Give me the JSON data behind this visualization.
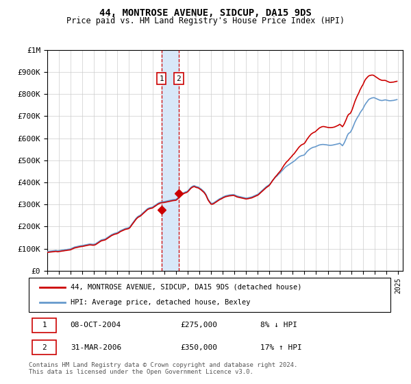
{
  "title": "44, MONTROSE AVENUE, SIDCUP, DA15 9DS",
  "subtitle": "Price paid vs. HM Land Registry's House Price Index (HPI)",
  "legend_line1": "44, MONTROSE AVENUE, SIDCUP, DA15 9DS (detached house)",
  "legend_line2": "HPI: Average price, detached house, Bexley",
  "transaction1_date": "2004-10-08",
  "transaction1_price": 275000,
  "transaction2_date": "2006-03-31",
  "transaction2_price": 350000,
  "footer": "Contains HM Land Registry data © Crown copyright and database right 2024.\nThis data is licensed under the Open Government Licence v3.0.",
  "red_color": "#cc0000",
  "blue_color": "#6699cc",
  "shaded_color": "#d8e8f8",
  "ylim": [
    0,
    1000000
  ],
  "yticks": [
    0,
    100000,
    200000,
    300000,
    400000,
    500000,
    600000,
    700000,
    800000,
    900000,
    1000000
  ],
  "ytick_labels": [
    "£0",
    "£100K",
    "£200K",
    "£300K",
    "£400K",
    "£500K",
    "£600K",
    "£700K",
    "£800K",
    "£900K",
    "£1M"
  ],
  "hpi_monthly_values": [
    87000,
    87500,
    88000,
    88500,
    89000,
    89500,
    90000,
    90500,
    91000,
    91500,
    90500,
    90000,
    91000,
    91500,
    92000,
    93000,
    93500,
    94000,
    95000,
    95500,
    96000,
    97000,
    97500,
    98000,
    99000,
    101000,
    103000,
    105000,
    107000,
    108000,
    109000,
    110000,
    111000,
    112000,
    113000,
    113500,
    114000,
    115000,
    116000,
    117000,
    118000,
    119000,
    120000,
    120500,
    121000,
    120500,
    120000,
    119500,
    120000,
    121000,
    123000,
    126000,
    129000,
    132000,
    135000,
    138000,
    140000,
    141000,
    142000,
    143000,
    145000,
    148000,
    151000,
    154000,
    157000,
    160000,
    163000,
    165000,
    167000,
    169000,
    170000,
    171000,
    173000,
    175000,
    178000,
    181000,
    183000,
    185000,
    187000,
    189000,
    191000,
    192000,
    193000,
    194000,
    196000,
    200000,
    206000,
    212000,
    218000,
    224000,
    230000,
    236000,
    241000,
    245000,
    248000,
    250000,
    253000,
    257000,
    261000,
    265000,
    269000,
    273000,
    277000,
    281000,
    283000,
    285000,
    286000,
    287000,
    288000,
    291000,
    294000,
    297000,
    300000,
    303000,
    306000,
    308000,
    310000,
    311000,
    312000,
    312500,
    313000,
    314000,
    315000,
    316000,
    317000,
    318000,
    319000,
    320000,
    321000,
    321500,
    322000,
    322500,
    323000,
    326000,
    330000,
    334000,
    338000,
    342000,
    346000,
    350000,
    353000,
    355000,
    357000,
    358000,
    361000,
    365000,
    370000,
    375000,
    379000,
    382000,
    384000,
    385000,
    383000,
    381000,
    380000,
    379000,
    376000,
    373000,
    370000,
    366000,
    362000,
    358000,
    352000,
    345000,
    335000,
    325000,
    318000,
    312000,
    306000,
    305000,
    306000,
    308000,
    311000,
    314000,
    317000,
    320000,
    323000,
    326000,
    328000,
    330000,
    333000,
    335000,
    337000,
    339000,
    340000,
    341000,
    342000,
    343000,
    343500,
    344000,
    344500,
    345000,
    344000,
    342000,
    340000,
    338000,
    337000,
    336000,
    335000,
    334000,
    333000,
    332000,
    331000,
    330000,
    329000,
    329500,
    330000,
    331000,
    332000,
    333000,
    334000,
    336000,
    338000,
    340000,
    342000,
    344000,
    346000,
    349000,
    353000,
    357000,
    361000,
    365000,
    369000,
    373000,
    377000,
    381000,
    384000,
    387000,
    390000,
    395000,
    401000,
    407000,
    412000,
    417000,
    422000,
    426000,
    430000,
    435000,
    439000,
    443000,
    448000,
    453000,
    458000,
    463000,
    467000,
    471000,
    474000,
    477000,
    480000,
    483000,
    486000,
    489000,
    492000,
    495000,
    498000,
    502000,
    506000,
    510000,
    514000,
    517000,
    519000,
    521000,
    522000,
    523000,
    525000,
    530000,
    536000,
    541000,
    545000,
    549000,
    552000,
    555000,
    557000,
    559000,
    560000,
    561000,
    563000,
    565000,
    567000,
    569000,
    570000,
    571000,
    571500,
    572000,
    571500,
    571000,
    570500,
    570000,
    569000,
    568500,
    568000,
    568000,
    568500,
    569000,
    570000,
    571000,
    572000,
    573000,
    574000,
    575000,
    577000,
    575000,
    571000,
    566000,
    572000,
    580000,
    590000,
    600000,
    612000,
    620000,
    624000,
    626000,
    634000,
    642000,
    652000,
    663000,
    674000,
    683000,
    691000,
    698000,
    705000,
    714000,
    721000,
    727000,
    733000,
    742000,
    750000,
    757000,
    763000,
    769000,
    775000,
    778000,
    780000,
    782000,
    783000,
    784000,
    783000,
    781000,
    779000,
    777000,
    775000,
    773000,
    772000,
    771000,
    771000,
    772000,
    773000,
    774000,
    773000,
    772000,
    771000,
    770000,
    770000,
    770000,
    771000,
    771000,
    772000,
    773000,
    774000,
    775000
  ],
  "red_monthly_values": [
    83000,
    83500,
    84000,
    84500,
    85000,
    85500,
    86000,
    86500,
    87000,
    87500,
    86500,
    86000,
    87000,
    87500,
    88000,
    89000,
    89500,
    90000,
    91000,
    91500,
    92000,
    93000,
    93500,
    94000,
    95000,
    97000,
    99000,
    101000,
    103000,
    104000,
    105000,
    106000,
    107000,
    108000,
    109000,
    109500,
    110000,
    111000,
    112000,
    113000,
    114000,
    115000,
    116000,
    116500,
    117000,
    116500,
    116000,
    115500,
    116000,
    117000,
    119000,
    122000,
    125000,
    128000,
    131000,
    134000,
    136000,
    137000,
    138000,
    139000,
    141000,
    144000,
    147000,
    150000,
    153000,
    156000,
    159000,
    161000,
    163000,
    165000,
    166000,
    167000,
    169000,
    171000,
    174000,
    177000,
    179000,
    181000,
    183000,
    185000,
    187000,
    188000,
    189000,
    190000,
    192000,
    196000,
    202000,
    208000,
    214000,
    220000,
    226000,
    232000,
    237000,
    241000,
    244000,
    246000,
    249000,
    253000,
    257000,
    261000,
    265000,
    269000,
    273000,
    277000,
    279000,
    281000,
    282000,
    283000,
    284000,
    287000,
    290000,
    293000,
    296000,
    299000,
    302000,
    304000,
    306000,
    307000,
    308000,
    308500,
    309000,
    310000,
    311000,
    312000,
    313000,
    314000,
    315000,
    316000,
    317000,
    317500,
    318000,
    318500,
    319000,
    322000,
    326000,
    330000,
    334000,
    338000,
    342000,
    346000,
    349000,
    351000,
    353000,
    354000,
    357000,
    361000,
    366000,
    371000,
    375000,
    378000,
    380000,
    381000,
    379000,
    377000,
    376000,
    375000,
    372000,
    369000,
    366000,
    362000,
    358000,
    354000,
    348000,
    341000,
    331000,
    321000,
    314000,
    308000,
    302000,
    301000,
    302000,
    304000,
    307000,
    310000,
    313000,
    316000,
    319000,
    322000,
    324000,
    326000,
    329000,
    331000,
    333000,
    335000,
    336000,
    337000,
    338000,
    339000,
    339500,
    340000,
    340500,
    341000,
    340000,
    338000,
    336000,
    334000,
    333000,
    332000,
    331000,
    330000,
    329000,
    328000,
    327000,
    326000,
    325000,
    325500,
    326000,
    327000,
    328000,
    329000,
    330000,
    332000,
    334000,
    336000,
    338000,
    340000,
    342000,
    345000,
    349000,
    353000,
    357000,
    361000,
    365000,
    369000,
    373000,
    377000,
    380000,
    383000,
    387000,
    393000,
    399000,
    406000,
    412000,
    418000,
    424000,
    429000,
    434000,
    440000,
    445000,
    450000,
    456000,
    463000,
    470000,
    477000,
    483000,
    489000,
    494000,
    498000,
    503000,
    508000,
    513000,
    518000,
    524000,
    528000,
    533000,
    539000,
    545000,
    551000,
    557000,
    562000,
    566000,
    570000,
    572000,
    574000,
    577000,
    583000,
    590000,
    597000,
    603000,
    609000,
    614000,
    619000,
    622000,
    625000,
    627000,
    629000,
    633000,
    637000,
    641000,
    645000,
    648000,
    650000,
    652000,
    653000,
    653000,
    652000,
    651000,
    650000,
    649000,
    648500,
    648000,
    648000,
    648500,
    649000,
    650000,
    651000,
    653000,
    655000,
    657000,
    659000,
    663000,
    661000,
    657000,
    652000,
    658000,
    666000,
    676000,
    686000,
    698000,
    706000,
    710000,
    712000,
    720000,
    730000,
    742000,
    755000,
    768000,
    779000,
    789000,
    798000,
    807000,
    818000,
    827000,
    835000,
    842000,
    852000,
    861000,
    868000,
    873000,
    878000,
    882000,
    884000,
    885000,
    886000,
    886000,
    885000,
    882000,
    879000,
    876000,
    873000,
    870000,
    867000,
    865000,
    863000,
    862000,
    862000,
    862000,
    862000,
    860000,
    858000,
    856000,
    854000,
    853000,
    853000,
    854000,
    854000,
    855000,
    856000,
    857000,
    858000
  ]
}
